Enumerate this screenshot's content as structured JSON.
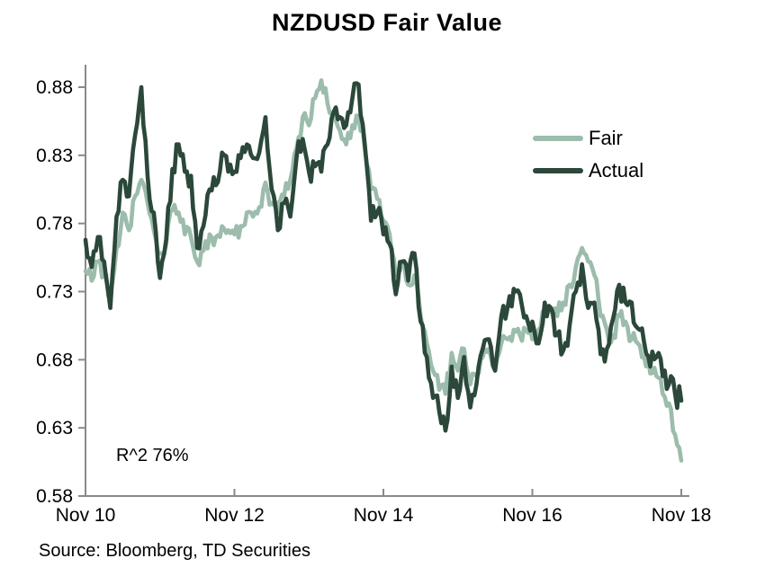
{
  "title": "NZDUSD Fair Value",
  "annotation": "R^2 76%",
  "source": "Source: Bloomberg, TD Securities",
  "colors": {
    "fair_line": "#9cbcac",
    "actual_line": "#2b483a",
    "axis": "#8a8a8a",
    "text": "#000000",
    "background": "#ffffff"
  },
  "chart_data": {
    "type": "line",
    "title": "NZDUSD Fair Value",
    "xlabel": "",
    "ylabel": "",
    "x_start": "Nov 2010",
    "x_end": "Nov 2018",
    "x_resolution": "monthly (97 points)",
    "x_tick_labels": [
      "Nov 10",
      "Nov 12",
      "Nov 14",
      "Nov 16",
      "Nov 18"
    ],
    "x_tick_indices": [
      0,
      24,
      48,
      72,
      96
    ],
    "y_ticks": [
      0.58,
      0.63,
      0.68,
      0.73,
      0.78,
      0.83,
      0.88
    ],
    "ylim": [
      0.58,
      0.895
    ],
    "grid": false,
    "legend_position": "upper right",
    "annotation": "R^2 76%",
    "series": [
      {
        "name": "Fair",
        "color": "#9cbcac",
        "noise": 0.007,
        "values": [
          0.745,
          0.738,
          0.752,
          0.742,
          0.728,
          0.762,
          0.788,
          0.775,
          0.8,
          0.812,
          0.795,
          0.775,
          0.758,
          0.765,
          0.79,
          0.788,
          0.772,
          0.77,
          0.752,
          0.76,
          0.772,
          0.77,
          0.778,
          0.775,
          0.772,
          0.778,
          0.788,
          0.785,
          0.792,
          0.81,
          0.795,
          0.788,
          0.8,
          0.812,
          0.835,
          0.858,
          0.852,
          0.872,
          0.885,
          0.868,
          0.862,
          0.848,
          0.838,
          0.852,
          0.858,
          0.835,
          0.805,
          0.798,
          0.782,
          0.772,
          0.742,
          0.752,
          0.735,
          0.742,
          0.712,
          0.692,
          0.672,
          0.658,
          0.655,
          0.685,
          0.672,
          0.688,
          0.662,
          0.668,
          0.682,
          0.688,
          0.672,
          0.692,
          0.695,
          0.702,
          0.698,
          0.702,
          0.695,
          0.702,
          0.712,
          0.718,
          0.712,
          0.722,
          0.735,
          0.748,
          0.762,
          0.752,
          0.742,
          0.712,
          0.702,
          0.698,
          0.712,
          0.708,
          0.695,
          0.692,
          0.682,
          0.67,
          0.668,
          0.655,
          0.648,
          0.625,
          0.606
        ]
      },
      {
        "name": "Actual",
        "color": "#2b483a",
        "noise": 0.009,
        "values": [
          0.768,
          0.748,
          0.77,
          0.752,
          0.718,
          0.785,
          0.812,
          0.8,
          0.845,
          0.88,
          0.815,
          0.788,
          0.74,
          0.768,
          0.82,
          0.838,
          0.818,
          0.815,
          0.762,
          0.778,
          0.805,
          0.808,
          0.832,
          0.818,
          0.818,
          0.828,
          0.838,
          0.828,
          0.832,
          0.858,
          0.805,
          0.775,
          0.795,
          0.785,
          0.828,
          0.842,
          0.818,
          0.822,
          0.818,
          0.838,
          0.862,
          0.858,
          0.852,
          0.872,
          0.882,
          0.838,
          0.782,
          0.788,
          0.772,
          0.765,
          0.728,
          0.752,
          0.738,
          0.758,
          0.708,
          0.682,
          0.652,
          0.642,
          0.628,
          0.675,
          0.652,
          0.682,
          0.645,
          0.662,
          0.688,
          0.695,
          0.672,
          0.712,
          0.718,
          0.732,
          0.728,
          0.712,
          0.708,
          0.692,
          0.722,
          0.718,
          0.698,
          0.687,
          0.705,
          0.73,
          0.75,
          0.718,
          0.722,
          0.684,
          0.688,
          0.71,
          0.735,
          0.722,
          0.722,
          0.703,
          0.693,
          0.675,
          0.682,
          0.668,
          0.662,
          0.655,
          0.65
        ]
      }
    ]
  }
}
